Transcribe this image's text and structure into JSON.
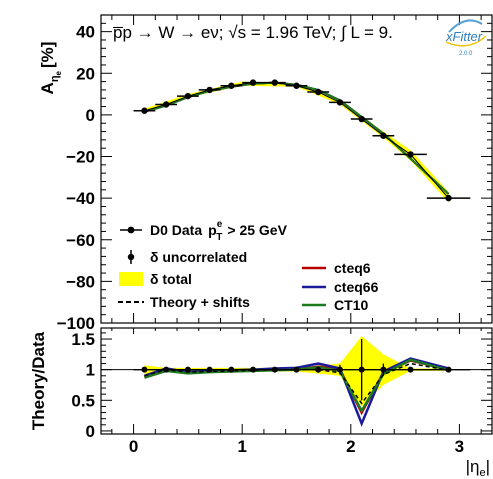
{
  "chart_data": [
    {
      "type": "line",
      "panel": "upper",
      "annotation": "p̅p → W → eν; √s = 1.96 TeV; ∫ L = 9.",
      "ylabel": "A",
      "ylabel_sub": "η",
      "ylabel_subsub": "e",
      "ylabel_unit": "[%]",
      "xlim": [
        -0.3,
        3.3
      ],
      "ylim": [
        -100,
        48
      ],
      "yticks": [
        -100,
        -80,
        -60,
        -40,
        -20,
        0,
        20,
        40
      ],
      "grid": false,
      "legend_placement": "bottom-left",
      "x": [
        0.1,
        0.3,
        0.5,
        0.7,
        0.9,
        1.1,
        1.3,
        1.5,
        1.7,
        1.9,
        2.1,
        2.3,
        2.55,
        2.9
      ],
      "xerr": [
        0.1,
        0.1,
        0.1,
        0.1,
        0.1,
        0.1,
        0.1,
        0.1,
        0.1,
        0.1,
        0.1,
        0.1,
        0.15,
        0.2
      ],
      "series": [
        {
          "name": "D0 Data",
          "values": [
            2,
            5,
            9,
            12,
            14,
            15.5,
            15.5,
            14,
            11,
            6,
            -2,
            -10,
            -19,
            -40
          ]
        },
        {
          "name": "cteq6",
          "values": [
            1.5,
            4.5,
            8.5,
            11.5,
            13.5,
            15,
            15.5,
            14.5,
            12,
            7,
            -1,
            -9,
            -21,
            -38
          ]
        },
        {
          "name": "cteq66",
          "values": [
            1.5,
            4.5,
            8.5,
            11.5,
            13.5,
            15,
            15.5,
            14.5,
            12,
            7,
            -1,
            -9,
            -21,
            -38
          ]
        },
        {
          "name": "CT10",
          "values": [
            1.5,
            4.5,
            8.5,
            11.5,
            13.5,
            15,
            15.5,
            14.5,
            12,
            7,
            -1,
            -9,
            -21,
            -38
          ]
        }
      ],
      "band_total": {
        "x": [
          0.1,
          0.5,
          1.0,
          1.5,
          1.9,
          2.1,
          2.3,
          2.55,
          2.9
        ],
        "lower": [
          1,
          8.5,
          14,
          13.5,
          5,
          -3,
          -11,
          -22,
          -42
        ],
        "upper": [
          3,
          10,
          16,
          15,
          7,
          -1,
          -8,
          -17,
          -37
        ]
      },
      "legend": [
        {
          "label": "D0 Data",
          "sup": "e",
          "sub": "T",
          "tail": "> 25 GeV",
          "kind": "marker"
        },
        {
          "label": "δ uncorrelated",
          "kind": "errbar"
        },
        {
          "label": "δ total",
          "kind": "box"
        },
        {
          "label": "Theory + shifts",
          "kind": "dashed"
        }
      ],
      "legend2": [
        {
          "label": "cteq6",
          "color": "#b80000"
        },
        {
          "label": "cteq66",
          "color": "#1a1a9a"
        },
        {
          "label": "CT10",
          "color": "#1e7a1e"
        }
      ],
      "logo": "xFitter",
      "logo_version": "2.0.0"
    },
    {
      "type": "line",
      "panel": "lower",
      "ylabel": "Theory/Data",
      "xlabel": "|η",
      "xlabel_sub": "e",
      "xlabel_tail": "|",
      "xlim": [
        -0.3,
        3.3
      ],
      "ylim": [
        -0.05,
        1.68
      ],
      "xticks": [
        0,
        1,
        2,
        3
      ],
      "yticks": [
        0,
        0.5,
        1,
        1.5
      ],
      "yticklabels": [
        "0",
        "0.5",
        "1",
        "1.5"
      ],
      "x": [
        0.1,
        0.3,
        0.5,
        0.7,
        0.9,
        1.1,
        1.3,
        1.5,
        1.7,
        1.9,
        2.1,
        2.3,
        2.55,
        2.9
      ],
      "points": [
        1,
        1,
        1,
        1,
        1,
        1,
        1,
        1,
        1,
        1,
        1,
        1,
        1,
        1
      ],
      "point_err": [
        0.03,
        0.03,
        0.03,
        0.03,
        0.03,
        0.03,
        0.03,
        0.03,
        0.05,
        0.08,
        0.5,
        0.1,
        0.04,
        0.03
      ],
      "band_total": {
        "x": [
          0.1,
          0.3,
          0.5,
          0.9,
          1.5,
          1.9,
          2.1,
          2.3,
          2.55,
          2.9
        ],
        "lower": [
          0.93,
          0.97,
          0.97,
          0.97,
          0.97,
          0.9,
          0.4,
          0.75,
          0.98,
          0.98
        ],
        "upper": [
          1.07,
          1.03,
          1.03,
          1.03,
          1.03,
          1.1,
          1.55,
          1.25,
          1.02,
          1.02
        ]
      },
      "series": [
        {
          "name": "cteq6",
          "color": "#b80000",
          "values": [
            0.88,
            1.0,
            0.95,
            0.97,
            0.98,
            0.99,
            1.0,
            1.0,
            1.05,
            1.0,
            0.3,
            0.95,
            1.15,
            1.0
          ]
        },
        {
          "name": "cteq66",
          "color": "#1a1a9a",
          "values": [
            0.9,
            1.02,
            0.96,
            0.98,
            0.99,
            1.0,
            1.02,
            1.03,
            1.1,
            1.02,
            0.12,
            0.97,
            1.18,
            1.02
          ]
        },
        {
          "name": "CT10",
          "color": "#1e7a1e",
          "values": [
            0.87,
            0.98,
            0.94,
            0.96,
            0.97,
            0.98,
            0.99,
            1.0,
            1.04,
            0.98,
            0.33,
            0.93,
            1.16,
            0.99
          ]
        },
        {
          "name": "Theory + shifts",
          "color": "#000000",
          "dashed": true,
          "values": [
            0.9,
            1.0,
            0.96,
            0.97,
            0.98,
            0.99,
            1.0,
            1.0,
            1.0,
            0.95,
            0.45,
            0.92,
            1.1,
            0.99
          ]
        }
      ]
    }
  ]
}
